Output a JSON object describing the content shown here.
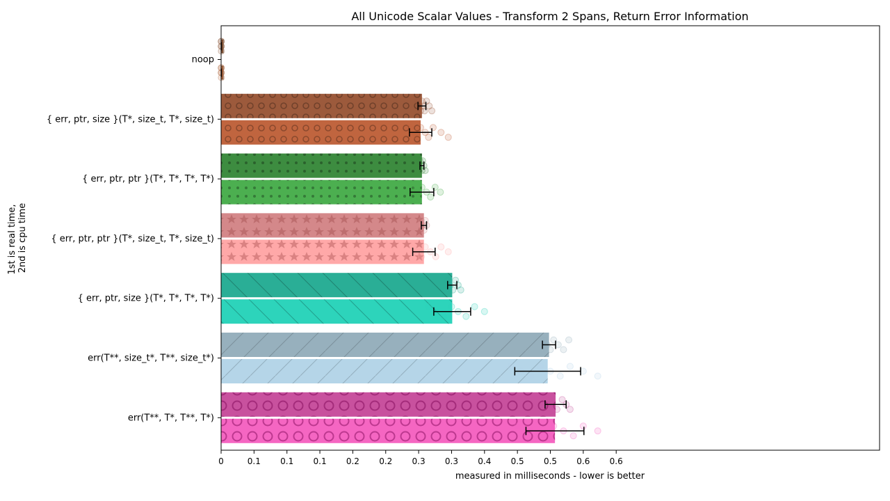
{
  "chart_data": {
    "type": "bar",
    "orientation": "horizontal",
    "title": "All Unicode Scalar Values - Transform 2 Spans, Return Error Information",
    "xlabel": "measured in milliseconds - lower is better",
    "ylabel_line1": "1st is real time,",
    "ylabel_line2": "2nd is cpu time",
    "xlim": [
      0,
      0.7
    ],
    "xticks": [
      {
        "value": 0,
        "label": "0"
      },
      {
        "value": 0.05,
        "label": "0.1"
      },
      {
        "value": 0.1,
        "label": "0.1"
      },
      {
        "value": 0.15,
        "label": "0.1"
      },
      {
        "value": 0.2,
        "label": "0.2"
      },
      {
        "value": 0.25,
        "label": "0.2"
      },
      {
        "value": 0.3,
        "label": "0.3"
      },
      {
        "value": 0.35,
        "label": "0.3"
      },
      {
        "value": 0.4,
        "label": "0.4"
      },
      {
        "value": 0.45,
        "label": "0.5"
      },
      {
        "value": 0.5,
        "label": "0.5"
      },
      {
        "value": 0.55,
        "label": "0.6"
      },
      {
        "value": 0.6,
        "label": "0.6"
      }
    ],
    "categories": [
      {
        "label": "noop",
        "color_real": "#8b5a3c",
        "color_cpu": "#b06a45",
        "pattern": "none",
        "real": {
          "value": 0.0003,
          "err": 0.0001,
          "scatter": [
            0.0002,
            0.0003,
            0.0004,
            0.0003,
            0.0002
          ]
        },
        "cpu": {
          "value": 0.0003,
          "err": 0.0001,
          "scatter": [
            0.0002,
            0.0003,
            0.0004,
            0.0003,
            0.0002
          ]
        }
      },
      {
        "label": "{ err, ptr, size }(T*, size_t, T*, size_t)",
        "color_real": "#9c5a3c",
        "color_cpu": "#c0653f",
        "pattern": "ring",
        "real": {
          "value": 0.305,
          "err": 0.006,
          "scatter": [
            0.298,
            0.301,
            0.303,
            0.305,
            0.307,
            0.309,
            0.312,
            0.316,
            0.32
          ]
        },
        "cpu": {
          "value": 0.303,
          "err": 0.017,
          "scatter": [
            0.287,
            0.292,
            0.298,
            0.303,
            0.31,
            0.315,
            0.322,
            0.334,
            0.345
          ]
        }
      },
      {
        "label": "{ err, ptr, ptr }(T*, T*, T*, T*)",
        "color_real": "#3d8c40",
        "color_cpu": "#4caf50",
        "pattern": "dot",
        "real": {
          "value": 0.305,
          "err": 0.003,
          "scatter": [
            0.302,
            0.304,
            0.305,
            0.306,
            0.308,
            0.31
          ]
        },
        "cpu": {
          "value": 0.305,
          "err": 0.018,
          "scatter": [
            0.288,
            0.294,
            0.3,
            0.305,
            0.312,
            0.318,
            0.325,
            0.333
          ]
        }
      },
      {
        "label": "{ err, ptr, ptr }(T*, size_t, T*, size_t)",
        "color_real": "#d4888a",
        "color_cpu": "#ffa8a8",
        "pattern": "star",
        "real": {
          "value": 0.308,
          "err": 0.004,
          "scatter": [
            0.304,
            0.306,
            0.308,
            0.31,
            0.312
          ]
        },
        "cpu": {
          "value": 0.308,
          "err": 0.017,
          "scatter": [
            0.292,
            0.298,
            0.304,
            0.31,
            0.318,
            0.326,
            0.334,
            0.345
          ]
        }
      },
      {
        "label": "{ err, ptr, size }(T*, T*, T*, T*)",
        "color_real": "#2aae96",
        "color_cpu": "#2dd4bb",
        "pattern": "diag",
        "real": {
          "value": 0.351,
          "err": 0.007,
          "scatter": [
            0.344,
            0.348,
            0.352,
            0.356,
            0.36,
            0.364
          ]
        },
        "cpu": {
          "value": 0.351,
          "err": 0.028,
          "scatter": [
            0.315,
            0.325,
            0.338,
            0.35,
            0.36,
            0.372,
            0.385,
            0.4
          ]
        }
      },
      {
        "label": "err(T**, size_t*, T**, size_t*)",
        "color_real": "#97b0bd",
        "color_cpu": "#b5d5e8",
        "pattern": "diag-light",
        "real": {
          "value": 0.498,
          "err": 0.01,
          "scatter": [
            0.49,
            0.495,
            0.5,
            0.505,
            0.512,
            0.52,
            0.528
          ]
        },
        "cpu": {
          "value": 0.496,
          "err": 0.05,
          "scatter": [
            0.44,
            0.455,
            0.47,
            0.485,
            0.5,
            0.515,
            0.53,
            0.55,
            0.572
          ]
        }
      },
      {
        "label": "err(T**, T*, T**, T*)",
        "color_real": "#c8519e",
        "color_cpu": "#f566c2",
        "pattern": "bigring",
        "real": {
          "value": 0.508,
          "err": 0.016,
          "scatter": [
            0.494,
            0.502,
            0.51,
            0.518,
            0.524,
            0.53
          ]
        },
        "cpu": {
          "value": 0.507,
          "err": 0.044,
          "scatter": [
            0.45,
            0.47,
            0.49,
            0.505,
            0.52,
            0.535,
            0.55,
            0.572
          ]
        }
      }
    ]
  }
}
